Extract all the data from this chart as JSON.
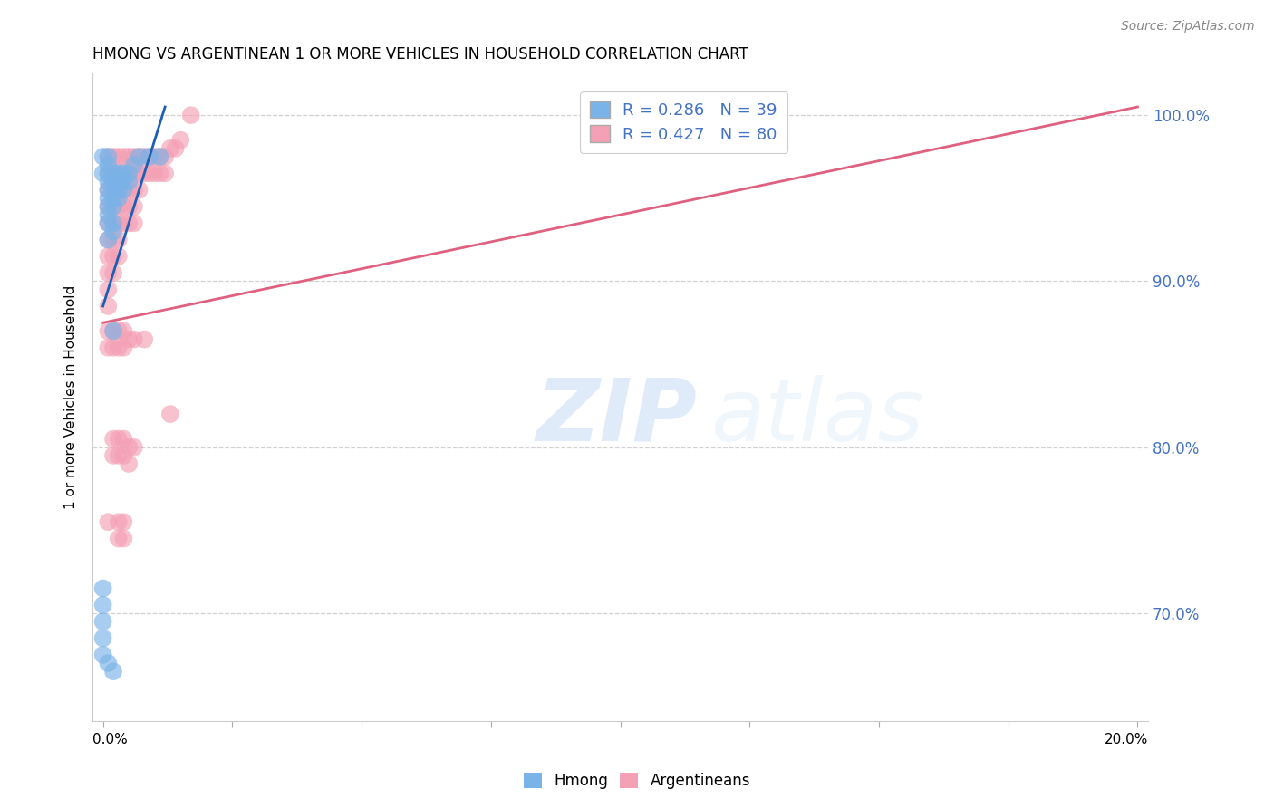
{
  "title": "HMONG VS ARGENTINEAN 1 OR MORE VEHICLES IN HOUSEHOLD CORRELATION CHART",
  "source": "Source: ZipAtlas.com",
  "ylabel": "1 or more Vehicles in Household",
  "y_ticks": [
    0.7,
    0.8,
    0.9,
    1.0
  ],
  "y_tick_labels": [
    "70.0%",
    "80.0%",
    "90.0%",
    "100.0%"
  ],
  "xlim": [
    -0.002,
    0.202
  ],
  "ylim": [
    0.635,
    1.025
  ],
  "hmong_color": "#7ab3e8",
  "argentinean_color": "#f4a0b5",
  "hmong_line_color": "#1a5fb4",
  "argentinean_line_color": "#e06080",
  "watermark_zip": "ZIP",
  "watermark_atlas": "atlas",
  "hmong_points": [
    [
      0.0,
      0.975
    ],
    [
      0.0,
      0.965
    ],
    [
      0.001,
      0.975
    ],
    [
      0.001,
      0.97
    ],
    [
      0.001,
      0.965
    ],
    [
      0.001,
      0.96
    ],
    [
      0.001,
      0.955
    ],
    [
      0.001,
      0.95
    ],
    [
      0.001,
      0.945
    ],
    [
      0.001,
      0.94
    ],
    [
      0.001,
      0.935
    ],
    [
      0.001,
      0.925
    ],
    [
      0.002,
      0.965
    ],
    [
      0.002,
      0.96
    ],
    [
      0.002,
      0.955
    ],
    [
      0.002,
      0.95
    ],
    [
      0.002,
      0.945
    ],
    [
      0.002,
      0.935
    ],
    [
      0.002,
      0.93
    ],
    [
      0.003,
      0.965
    ],
    [
      0.003,
      0.96
    ],
    [
      0.003,
      0.955
    ],
    [
      0.003,
      0.95
    ],
    [
      0.004,
      0.965
    ],
    [
      0.004,
      0.96
    ],
    [
      0.004,
      0.955
    ],
    [
      0.005,
      0.965
    ],
    [
      0.005,
      0.96
    ],
    [
      0.006,
      0.97
    ],
    [
      0.007,
      0.975
    ],
    [
      0.009,
      0.975
    ],
    [
      0.011,
      0.975
    ],
    [
      0.002,
      0.87
    ],
    [
      0.0,
      0.715
    ],
    [
      0.0,
      0.705
    ],
    [
      0.0,
      0.695
    ],
    [
      0.0,
      0.685
    ],
    [
      0.0,
      0.675
    ],
    [
      0.001,
      0.67
    ],
    [
      0.002,
      0.665
    ]
  ],
  "argentinean_points": [
    [
      0.001,
      0.975
    ],
    [
      0.001,
      0.965
    ],
    [
      0.001,
      0.955
    ],
    [
      0.001,
      0.945
    ],
    [
      0.001,
      0.935
    ],
    [
      0.001,
      0.925
    ],
    [
      0.001,
      0.915
    ],
    [
      0.001,
      0.905
    ],
    [
      0.001,
      0.895
    ],
    [
      0.001,
      0.885
    ],
    [
      0.002,
      0.975
    ],
    [
      0.002,
      0.965
    ],
    [
      0.002,
      0.955
    ],
    [
      0.002,
      0.945
    ],
    [
      0.002,
      0.935
    ],
    [
      0.002,
      0.925
    ],
    [
      0.002,
      0.915
    ],
    [
      0.002,
      0.905
    ],
    [
      0.003,
      0.975
    ],
    [
      0.003,
      0.965
    ],
    [
      0.003,
      0.955
    ],
    [
      0.003,
      0.945
    ],
    [
      0.003,
      0.935
    ],
    [
      0.003,
      0.925
    ],
    [
      0.003,
      0.915
    ],
    [
      0.004,
      0.975
    ],
    [
      0.004,
      0.965
    ],
    [
      0.004,
      0.955
    ],
    [
      0.004,
      0.945
    ],
    [
      0.004,
      0.935
    ],
    [
      0.005,
      0.975
    ],
    [
      0.005,
      0.965
    ],
    [
      0.005,
      0.955
    ],
    [
      0.005,
      0.945
    ],
    [
      0.005,
      0.935
    ],
    [
      0.006,
      0.975
    ],
    [
      0.006,
      0.965
    ],
    [
      0.006,
      0.955
    ],
    [
      0.006,
      0.945
    ],
    [
      0.006,
      0.935
    ],
    [
      0.007,
      0.975
    ],
    [
      0.007,
      0.965
    ],
    [
      0.007,
      0.955
    ],
    [
      0.008,
      0.975
    ],
    [
      0.008,
      0.965
    ],
    [
      0.009,
      0.975
    ],
    [
      0.009,
      0.965
    ],
    [
      0.01,
      0.975
    ],
    [
      0.01,
      0.965
    ],
    [
      0.011,
      0.975
    ],
    [
      0.011,
      0.965
    ],
    [
      0.012,
      0.975
    ],
    [
      0.012,
      0.965
    ],
    [
      0.013,
      0.98
    ],
    [
      0.014,
      0.98
    ],
    [
      0.015,
      0.985
    ],
    [
      0.017,
      1.0
    ],
    [
      0.001,
      0.87
    ],
    [
      0.001,
      0.86
    ],
    [
      0.002,
      0.87
    ],
    [
      0.002,
      0.86
    ],
    [
      0.003,
      0.87
    ],
    [
      0.003,
      0.86
    ],
    [
      0.004,
      0.87
    ],
    [
      0.004,
      0.86
    ],
    [
      0.005,
      0.865
    ],
    [
      0.006,
      0.865
    ],
    [
      0.008,
      0.865
    ],
    [
      0.002,
      0.805
    ],
    [
      0.002,
      0.795
    ],
    [
      0.003,
      0.805
    ],
    [
      0.003,
      0.795
    ],
    [
      0.004,
      0.805
    ],
    [
      0.004,
      0.795
    ],
    [
      0.005,
      0.8
    ],
    [
      0.005,
      0.79
    ],
    [
      0.006,
      0.8
    ],
    [
      0.003,
      0.755
    ],
    [
      0.003,
      0.745
    ],
    [
      0.004,
      0.755
    ],
    [
      0.004,
      0.745
    ],
    [
      0.013,
      0.82
    ],
    [
      0.001,
      0.755
    ]
  ]
}
